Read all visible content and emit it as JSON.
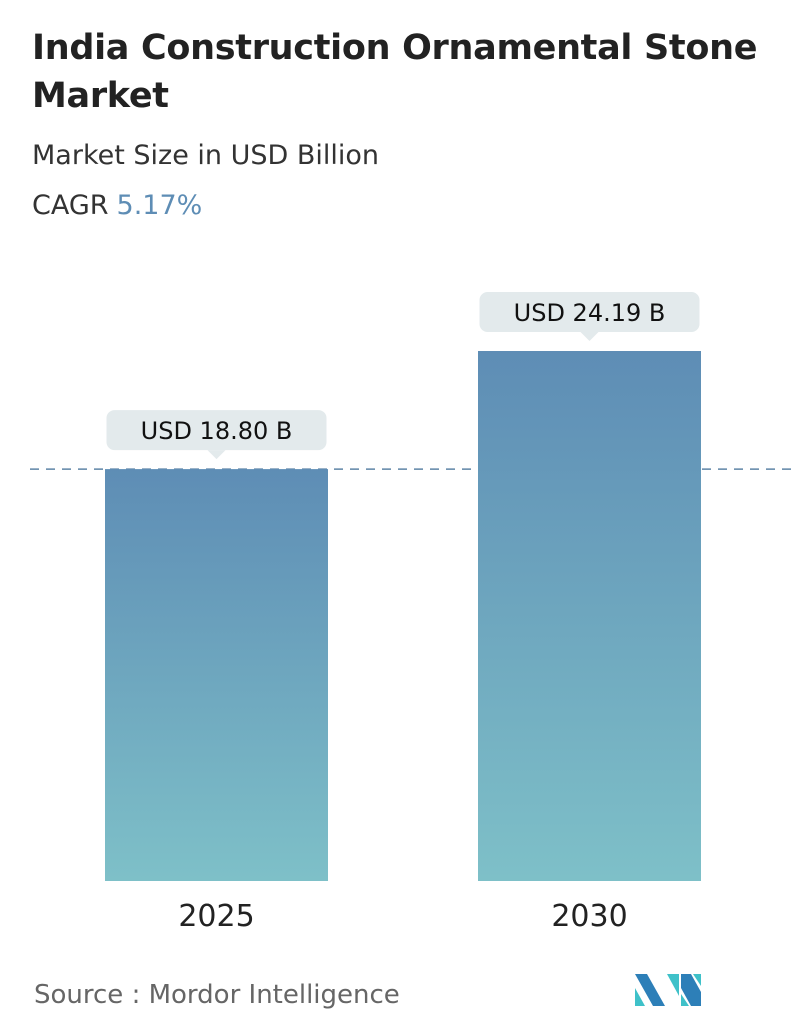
{
  "title": "India Construction Ornamental Stone Market",
  "subtitle": "Market Size in USD Billion",
  "cagr_label": "CAGR",
  "cagr_value": "5.17%",
  "source": "Source :  Mordor Intelligence",
  "logo": "Mordor Intelligence logo",
  "colors": {
    "bar_top": "#5e8db5",
    "bar_bottom": "#7ec0c8",
    "label_bg": "#e3eaec",
    "dashed_line": "#5e85a6",
    "cagr": "#5e8db5"
  },
  "chart_data": {
    "type": "bar",
    "categories": [
      "2025",
      "2030"
    ],
    "values": [
      18.8,
      24.19
    ],
    "data_labels": [
      "USD 18.80 B",
      "USD 24.19 B"
    ],
    "unit": "USD Billion",
    "reference_line": 18.8,
    "grid": false
  }
}
